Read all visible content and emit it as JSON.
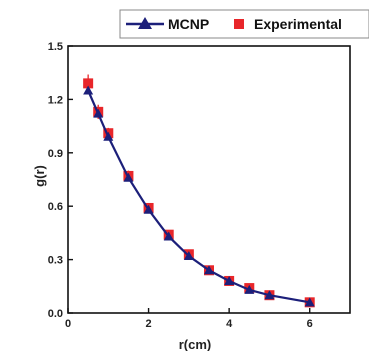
{
  "chart_data": {
    "type": "line",
    "title": "",
    "xlabel": "r(cm)",
    "ylabel": "g(r)",
    "xlim": [
      0,
      7
    ],
    "ylim": [
      0.0,
      1.5
    ],
    "x_ticks": [
      "0",
      "2",
      "4",
      "6"
    ],
    "y_ticks": [
      "0.0",
      "0.3",
      "0.6",
      "0.9",
      "1.2",
      "1.5"
    ],
    "grid": false,
    "legend_position": "top",
    "series": [
      {
        "name": "MCNP",
        "color": "#1c1f7a",
        "marker": "triangle-up",
        "x": [
          0.5,
          0.75,
          1.0,
          1.5,
          2.0,
          2.5,
          3.0,
          3.5,
          4.0,
          4.5,
          5.0,
          6.0
        ],
        "values": [
          1.25,
          1.12,
          0.99,
          0.76,
          0.58,
          0.43,
          0.32,
          0.24,
          0.18,
          0.13,
          0.1,
          0.06
        ]
      },
      {
        "name": "Experimental",
        "color": "#e8262a",
        "marker": "square",
        "x": [
          0.5,
          0.75,
          1.0,
          1.5,
          2.0,
          2.5,
          3.0,
          3.5,
          4.0,
          4.5,
          5.0,
          6.0
        ],
        "values": [
          1.29,
          1.13,
          1.01,
          0.77,
          0.59,
          0.44,
          0.33,
          0.24,
          0.18,
          0.14,
          0.1,
          0.06
        ],
        "error": [
          0.05,
          0.04,
          0.03,
          0.03,
          0.02,
          0.02,
          0.02,
          0.015,
          0.015,
          0.01,
          0.01,
          0.01
        ]
      }
    ]
  }
}
